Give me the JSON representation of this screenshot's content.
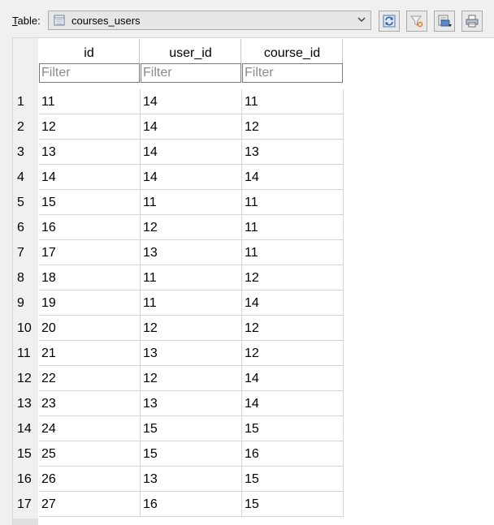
{
  "toolbar": {
    "table_label_prefix": "T",
    "table_label_rest": "able:",
    "table_selected": "courses_users",
    "icons": [
      "refresh-icon",
      "clear-filters-icon",
      "save-export-icon",
      "print-icon"
    ]
  },
  "grid": {
    "columns": [
      "id",
      "user_id",
      "course_id"
    ],
    "filter_placeholder": "Filter",
    "rows": [
      {
        "n": "1",
        "cells": [
          "11",
          "14",
          "11"
        ]
      },
      {
        "n": "2",
        "cells": [
          "12",
          "14",
          "12"
        ]
      },
      {
        "n": "3",
        "cells": [
          "13",
          "14",
          "13"
        ]
      },
      {
        "n": "4",
        "cells": [
          "14",
          "14",
          "14"
        ]
      },
      {
        "n": "5",
        "cells": [
          "15",
          "11",
          "11"
        ]
      },
      {
        "n": "6",
        "cells": [
          "16",
          "12",
          "11"
        ]
      },
      {
        "n": "7",
        "cells": [
          "17",
          "13",
          "11"
        ]
      },
      {
        "n": "8",
        "cells": [
          "18",
          "11",
          "12"
        ]
      },
      {
        "n": "9",
        "cells": [
          "19",
          "11",
          "14"
        ]
      },
      {
        "n": "10",
        "cells": [
          "20",
          "12",
          "12"
        ]
      },
      {
        "n": "11",
        "cells": [
          "21",
          "13",
          "12"
        ]
      },
      {
        "n": "12",
        "cells": [
          "22",
          "12",
          "14"
        ]
      },
      {
        "n": "13",
        "cells": [
          "23",
          "13",
          "14"
        ]
      },
      {
        "n": "14",
        "cells": [
          "24",
          "15",
          "15"
        ]
      },
      {
        "n": "15",
        "cells": [
          "25",
          "15",
          "16"
        ]
      },
      {
        "n": "16",
        "cells": [
          "26",
          "13",
          "15"
        ]
      },
      {
        "n": "17",
        "cells": [
          "27",
          "16",
          "15"
        ]
      }
    ]
  }
}
